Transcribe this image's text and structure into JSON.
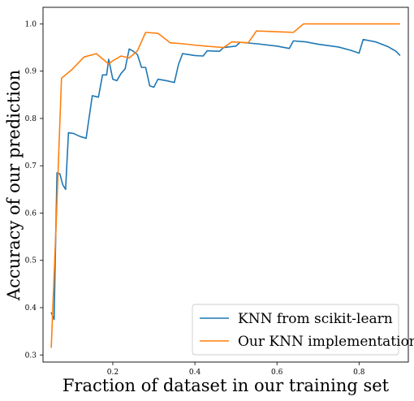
{
  "chart_data": {
    "type": "line",
    "xlabel": "Fraction of dataset in our training set",
    "ylabel": "Accuracy of our prediction",
    "xlim": [
      0.03,
      0.92
    ],
    "ylim": [
      0.285,
      1.035
    ],
    "xticks": [
      0.2,
      0.4,
      0.6,
      0.8
    ],
    "xtick_labels": [
      "0.2",
      "0.4",
      "0.6",
      "0.8"
    ],
    "yticks": [
      0.3,
      0.4,
      0.5,
      0.6,
      0.7,
      0.8,
      0.9,
      1.0
    ],
    "ytick_labels": [
      "0.3",
      "0.4",
      "0.5",
      "0.6",
      "0.7",
      "0.8",
      "0.9",
      "1.0"
    ],
    "grid": false,
    "legend_position": "lower-right",
    "series": [
      {
        "name": "KNN from scikit-learn",
        "color": "#1f77b4",
        "points": [
          [
            0.05,
            0.39
          ],
          [
            0.057,
            0.375
          ],
          [
            0.064,
            0.685
          ],
          [
            0.071,
            0.683
          ],
          [
            0.078,
            0.66
          ],
          [
            0.085,
            0.65
          ],
          [
            0.092,
            0.77
          ],
          [
            0.105,
            0.768
          ],
          [
            0.12,
            0.762
          ],
          [
            0.135,
            0.758
          ],
          [
            0.15,
            0.848
          ],
          [
            0.165,
            0.845
          ],
          [
            0.175,
            0.892
          ],
          [
            0.185,
            0.892
          ],
          [
            0.19,
            0.925
          ],
          [
            0.2,
            0.883
          ],
          [
            0.21,
            0.88
          ],
          [
            0.22,
            0.895
          ],
          [
            0.23,
            0.905
          ],
          [
            0.24,
            0.947
          ],
          [
            0.25,
            0.942
          ],
          [
            0.26,
            0.935
          ],
          [
            0.27,
            0.908
          ],
          [
            0.28,
            0.908
          ],
          [
            0.29,
            0.869
          ],
          [
            0.3,
            0.866
          ],
          [
            0.31,
            0.883
          ],
          [
            0.33,
            0.88
          ],
          [
            0.35,
            0.876
          ],
          [
            0.36,
            0.914
          ],
          [
            0.37,
            0.937
          ],
          [
            0.4,
            0.933
          ],
          [
            0.42,
            0.932
          ],
          [
            0.43,
            0.943
          ],
          [
            0.46,
            0.942
          ],
          [
            0.47,
            0.95
          ],
          [
            0.5,
            0.953
          ],
          [
            0.51,
            0.961
          ],
          [
            0.55,
            0.958
          ],
          [
            0.6,
            0.953
          ],
          [
            0.63,
            0.948
          ],
          [
            0.64,
            0.964
          ],
          [
            0.67,
            0.962
          ],
          [
            0.7,
            0.957
          ],
          [
            0.75,
            0.951
          ],
          [
            0.78,
            0.944
          ],
          [
            0.8,
            0.938
          ],
          [
            0.81,
            0.967
          ],
          [
            0.84,
            0.962
          ],
          [
            0.87,
            0.952
          ],
          [
            0.89,
            0.942
          ],
          [
            0.9,
            0.933
          ]
        ]
      },
      {
        "name": "Our KNN implementation",
        "color": "#ff7f0e",
        "points": [
          [
            0.05,
            0.315
          ],
          [
            0.063,
            0.6
          ],
          [
            0.075,
            0.885
          ],
          [
            0.1,
            0.903
          ],
          [
            0.13,
            0.93
          ],
          [
            0.16,
            0.937
          ],
          [
            0.19,
            0.915
          ],
          [
            0.2,
            0.922
          ],
          [
            0.22,
            0.932
          ],
          [
            0.24,
            0.928
          ],
          [
            0.26,
            0.943
          ],
          [
            0.28,
            0.982
          ],
          [
            0.31,
            0.98
          ],
          [
            0.34,
            0.96
          ],
          [
            0.37,
            0.958
          ],
          [
            0.4,
            0.955
          ],
          [
            0.44,
            0.952
          ],
          [
            0.47,
            0.95
          ],
          [
            0.49,
            0.962
          ],
          [
            0.53,
            0.96
          ],
          [
            0.55,
            0.985
          ],
          [
            0.58,
            0.984
          ],
          [
            0.61,
            0.983
          ],
          [
            0.64,
            0.982
          ],
          [
            0.665,
            1.0
          ],
          [
            0.7,
            1.0
          ],
          [
            0.75,
            1.0
          ],
          [
            0.8,
            1.0
          ],
          [
            0.85,
            1.0
          ],
          [
            0.9,
            1.0
          ]
        ]
      }
    ]
  }
}
